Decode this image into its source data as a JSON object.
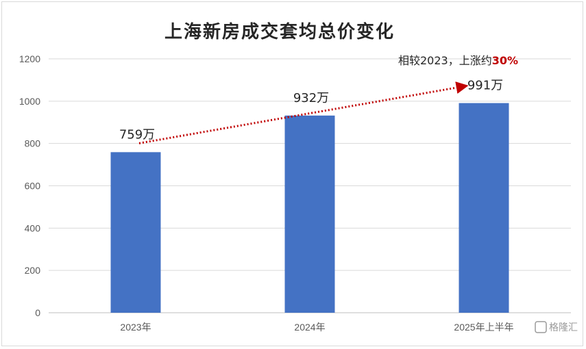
{
  "chart_data": {
    "type": "bar",
    "title": "上海新房成交套均总价变化",
    "categories": [
      "2023年",
      "2024年",
      "2025年上半年"
    ],
    "values": [
      759,
      932,
      991
    ],
    "data_labels": [
      "759万",
      "932万",
      "991万"
    ],
    "ylim": [
      0,
      1200
    ],
    "yticks": [
      0,
      200,
      400,
      600,
      800,
      1000,
      1200
    ],
    "grid": true,
    "legend": "none",
    "bar_color": "#4472c4",
    "annotation": {
      "prefix": "相较2023，上涨约",
      "highlight": "30%",
      "highlight_color": "#c00000",
      "arrow_color": "#c00000",
      "from_index": 0,
      "to_index": 2
    }
  },
  "watermark": {
    "icon": "gelonghui-logo-icon",
    "text": "格隆汇"
  }
}
